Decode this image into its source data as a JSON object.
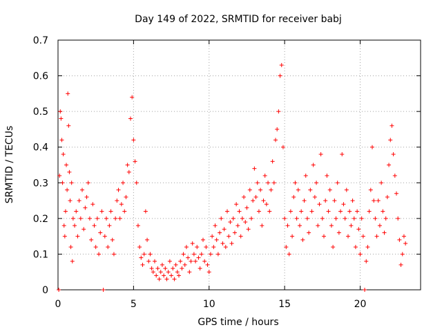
{
  "chart_data": {
    "type": "scatter",
    "title": "Day 149 of 2022, SRMTID for receiver babj",
    "xlabel": "GPS time / hours",
    "ylabel": "SRMTID / TECUs",
    "xlim": [
      0,
      24
    ],
    "ylim": [
      0,
      0.7
    ],
    "xticks": [
      0,
      5,
      10,
      15,
      20
    ],
    "xtick_labels": [
      "0",
      "5",
      "10",
      "15",
      "20"
    ],
    "yticks": [
      0,
      0.1,
      0.2,
      0.3,
      0.4,
      0.5,
      0.6,
      0.7
    ],
    "ytick_labels": [
      "0",
      "0.1",
      "0.2",
      "0.3",
      "0.4",
      "0.5",
      "0.6",
      "0.7"
    ],
    "grid": true,
    "marker": "+",
    "marker_color": "#ff0000",
    "series": [
      {
        "name": "SRMTID",
        "points": [
          [
            0.05,
            0.0
          ],
          [
            0.1,
            0.32
          ],
          [
            0.15,
            0.5
          ],
          [
            0.2,
            0.48
          ],
          [
            0.25,
            0.42
          ],
          [
            0.3,
            0.3
          ],
          [
            0.35,
            0.38
          ],
          [
            0.4,
            0.18
          ],
          [
            0.45,
            0.15
          ],
          [
            0.5,
            0.22
          ],
          [
            0.55,
            0.35
          ],
          [
            0.6,
            0.28
          ],
          [
            0.65,
            0.55
          ],
          [
            0.7,
            0.46
          ],
          [
            0.75,
            0.33
          ],
          [
            0.8,
            0.25
          ],
          [
            0.85,
            0.12
          ],
          [
            0.9,
            0.3
          ],
          [
            0.95,
            0.08
          ],
          [
            1.0,
            0.2
          ],
          [
            1.1,
            0.18
          ],
          [
            1.2,
            0.22
          ],
          [
            1.3,
            0.15
          ],
          [
            1.4,
            0.25
          ],
          [
            1.5,
            0.2
          ],
          [
            1.6,
            0.28
          ],
          [
            1.7,
            0.17
          ],
          [
            1.8,
            0.23
          ],
          [
            1.9,
            0.26
          ],
          [
            2.0,
            0.3
          ],
          [
            2.1,
            0.2
          ],
          [
            2.2,
            0.14
          ],
          [
            2.3,
            0.24
          ],
          [
            2.4,
            0.18
          ],
          [
            2.5,
            0.12
          ],
          [
            2.6,
            0.2
          ],
          [
            2.7,
            0.1
          ],
          [
            2.8,
            0.16
          ],
          [
            2.9,
            0.22
          ],
          [
            3.0,
            0.0
          ],
          [
            3.1,
            0.15
          ],
          [
            3.2,
            0.2
          ],
          [
            3.3,
            0.12
          ],
          [
            3.4,
            0.18
          ],
          [
            3.5,
            0.22
          ],
          [
            3.6,
            0.14
          ],
          [
            3.7,
            0.1
          ],
          [
            3.8,
            0.2
          ],
          [
            3.9,
            0.25
          ],
          [
            4.0,
            0.28
          ],
          [
            4.1,
            0.2
          ],
          [
            4.2,
            0.24
          ],
          [
            4.3,
            0.3
          ],
          [
            4.4,
            0.22
          ],
          [
            4.5,
            0.26
          ],
          [
            4.6,
            0.35
          ],
          [
            4.7,
            0.33
          ],
          [
            4.8,
            0.48
          ],
          [
            4.9,
            0.54
          ],
          [
            5.0,
            0.42
          ],
          [
            5.1,
            0.36
          ],
          [
            5.2,
            0.3
          ],
          [
            5.3,
            0.18
          ],
          [
            5.4,
            0.12
          ],
          [
            5.5,
            0.09
          ],
          [
            5.6,
            0.07
          ],
          [
            5.7,
            0.1
          ],
          [
            5.8,
            0.22
          ],
          [
            5.9,
            0.14
          ],
          [
            6.0,
            0.08
          ],
          [
            6.1,
            0.1
          ],
          [
            6.2,
            0.06
          ],
          [
            6.3,
            0.05
          ],
          [
            6.4,
            0.08
          ],
          [
            6.5,
            0.04
          ],
          [
            6.6,
            0.06
          ],
          [
            6.7,
            0.03
          ],
          [
            6.8,
            0.05
          ],
          [
            6.9,
            0.07
          ],
          [
            7.0,
            0.04
          ],
          [
            7.1,
            0.06
          ],
          [
            7.2,
            0.03
          ],
          [
            7.3,
            0.05
          ],
          [
            7.4,
            0.08
          ],
          [
            7.5,
            0.04
          ],
          [
            7.6,
            0.06
          ],
          [
            7.7,
            0.03
          ],
          [
            7.8,
            0.07
          ],
          [
            7.9,
            0.05
          ],
          [
            8.0,
            0.04
          ],
          [
            8.1,
            0.08
          ],
          [
            8.2,
            0.06
          ],
          [
            8.3,
            0.1
          ],
          [
            8.4,
            0.07
          ],
          [
            8.5,
            0.12
          ],
          [
            8.6,
            0.09
          ],
          [
            8.7,
            0.05
          ],
          [
            8.8,
            0.08
          ],
          [
            8.9,
            0.13
          ],
          [
            9.0,
            0.1
          ],
          [
            9.1,
            0.08
          ],
          [
            9.2,
            0.12
          ],
          [
            9.3,
            0.09
          ],
          [
            9.4,
            0.06
          ],
          [
            9.5,
            0.1
          ],
          [
            9.6,
            0.14
          ],
          [
            9.7,
            0.08
          ],
          [
            9.8,
            0.12
          ],
          [
            9.9,
            0.07
          ],
          [
            10.0,
            0.05
          ],
          [
            10.1,
            0.1
          ],
          [
            10.2,
            0.15
          ],
          [
            10.3,
            0.12
          ],
          [
            10.4,
            0.18
          ],
          [
            10.5,
            0.14
          ],
          [
            10.6,
            0.1
          ],
          [
            10.7,
            0.16
          ],
          [
            10.8,
            0.2
          ],
          [
            10.9,
            0.13
          ],
          [
            11.0,
            0.17
          ],
          [
            11.1,
            0.12
          ],
          [
            11.2,
            0.22
          ],
          [
            11.3,
            0.15
          ],
          [
            11.4,
            0.19
          ],
          [
            11.5,
            0.13
          ],
          [
            11.6,
            0.2
          ],
          [
            11.7,
            0.16
          ],
          [
            11.8,
            0.24
          ],
          [
            11.9,
            0.18
          ],
          [
            12.0,
            0.22
          ],
          [
            12.1,
            0.15
          ],
          [
            12.2,
            0.2
          ],
          [
            12.3,
            0.26
          ],
          [
            12.4,
            0.19
          ],
          [
            12.5,
            0.23
          ],
          [
            12.6,
            0.17
          ],
          [
            12.7,
            0.28
          ],
          [
            12.8,
            0.2
          ],
          [
            12.9,
            0.25
          ],
          [
            13.0,
            0.34
          ],
          [
            13.1,
            0.26
          ],
          [
            13.2,
            0.3
          ],
          [
            13.3,
            0.22
          ],
          [
            13.4,
            0.28
          ],
          [
            13.5,
            0.18
          ],
          [
            13.6,
            0.25
          ],
          [
            13.7,
            0.32
          ],
          [
            13.8,
            0.24
          ],
          [
            13.9,
            0.3
          ],
          [
            14.0,
            0.22
          ],
          [
            14.1,
            0.28
          ],
          [
            14.2,
            0.36
          ],
          [
            14.3,
            0.3
          ],
          [
            14.4,
            0.42
          ],
          [
            14.5,
            0.45
          ],
          [
            14.6,
            0.5
          ],
          [
            14.7,
            0.6
          ],
          [
            14.8,
            0.63
          ],
          [
            14.9,
            0.4
          ],
          [
            15.0,
            0.2
          ],
          [
            15.1,
            0.12
          ],
          [
            15.2,
            0.18
          ],
          [
            15.3,
            0.1
          ],
          [
            15.4,
            0.22
          ],
          [
            15.5,
            0.15
          ],
          [
            15.6,
            0.26
          ],
          [
            15.7,
            0.3
          ],
          [
            15.8,
            0.2
          ],
          [
            15.9,
            0.28
          ],
          [
            16.0,
            0.18
          ],
          [
            16.1,
            0.22
          ],
          [
            16.2,
            0.14
          ],
          [
            16.3,
            0.25
          ],
          [
            16.4,
            0.32
          ],
          [
            16.5,
            0.2
          ],
          [
            16.6,
            0.16
          ],
          [
            16.7,
            0.28
          ],
          [
            16.8,
            0.22
          ],
          [
            16.9,
            0.35
          ],
          [
            17.0,
            0.26
          ],
          [
            17.1,
            0.3
          ],
          [
            17.2,
            0.18
          ],
          [
            17.3,
            0.24
          ],
          [
            17.4,
            0.38
          ],
          [
            17.5,
            0.2
          ],
          [
            17.6,
            0.15
          ],
          [
            17.7,
            0.25
          ],
          [
            17.8,
            0.32
          ],
          [
            17.9,
            0.22
          ],
          [
            18.0,
            0.28
          ],
          [
            18.1,
            0.18
          ],
          [
            18.2,
            0.12
          ],
          [
            18.3,
            0.25
          ],
          [
            18.4,
            0.2
          ],
          [
            18.5,
            0.3
          ],
          [
            18.6,
            0.16
          ],
          [
            18.7,
            0.22
          ],
          [
            18.8,
            0.38
          ],
          [
            18.9,
            0.24
          ],
          [
            19.0,
            0.2
          ],
          [
            19.1,
            0.28
          ],
          [
            19.2,
            0.15
          ],
          [
            19.3,
            0.22
          ],
          [
            19.4,
            0.18
          ],
          [
            19.5,
            0.25
          ],
          [
            19.6,
            0.2
          ],
          [
            19.7,
            0.12
          ],
          [
            19.8,
            0.22
          ],
          [
            19.9,
            0.17
          ],
          [
            20.0,
            0.1
          ],
          [
            20.1,
            0.2
          ],
          [
            20.2,
            0.15
          ],
          [
            20.3,
            0.0
          ],
          [
            20.4,
            0.08
          ],
          [
            20.5,
            0.12
          ],
          [
            20.6,
            0.22
          ],
          [
            20.7,
            0.28
          ],
          [
            20.8,
            0.4
          ],
          [
            20.9,
            0.25
          ],
          [
            21.0,
            0.2
          ],
          [
            21.1,
            0.15
          ],
          [
            21.2,
            0.25
          ],
          [
            21.3,
            0.18
          ],
          [
            21.4,
            0.3
          ],
          [
            21.5,
            0.22
          ],
          [
            21.6,
            0.16
          ],
          [
            21.7,
            0.2
          ],
          [
            21.8,
            0.26
          ],
          [
            21.9,
            0.35
          ],
          [
            22.0,
            0.42
          ],
          [
            22.1,
            0.46
          ],
          [
            22.2,
            0.38
          ],
          [
            22.3,
            0.32
          ],
          [
            22.4,
            0.27
          ],
          [
            22.5,
            0.2
          ],
          [
            22.6,
            0.14
          ],
          [
            22.7,
            0.07
          ],
          [
            22.8,
            0.1
          ],
          [
            22.9,
            0.15
          ],
          [
            23.0,
            0.13
          ]
        ]
      }
    ]
  }
}
